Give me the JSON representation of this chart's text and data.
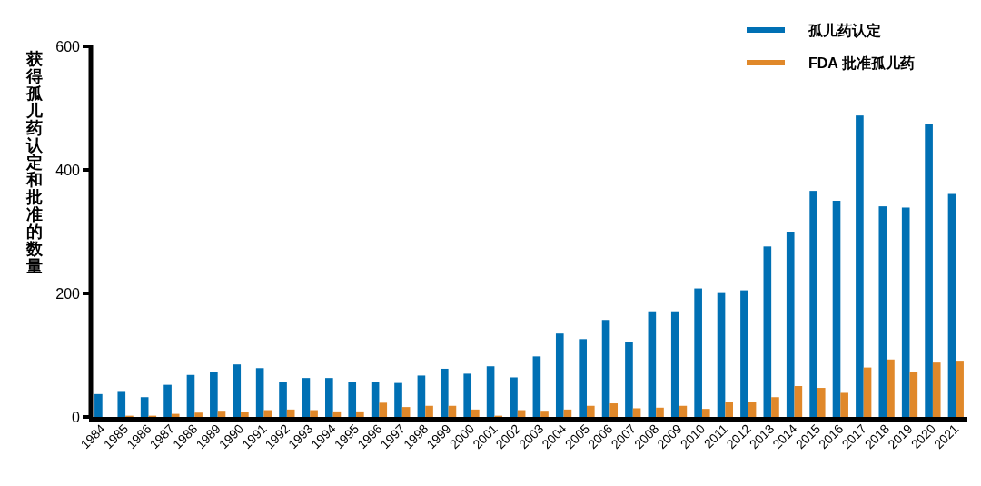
{
  "chart_data": {
    "type": "bar",
    "ylabel": "获得孤儿药认定和批准的数量",
    "categories": [
      "1984",
      "1985",
      "1986",
      "1987",
      "1988",
      "1989",
      "1990",
      "1991",
      "1992",
      "1993",
      "1994",
      "1995",
      "1996",
      "1997",
      "1998",
      "1999",
      "2000",
      "2001",
      "2002",
      "2003",
      "2004",
      "2005",
      "2006",
      "2007",
      "2008",
      "2009",
      "2010",
      "2011",
      "2012",
      "2013",
      "2014",
      "2015",
      "2016",
      "2017",
      "2018",
      "2019",
      "2020",
      "2021"
    ],
    "series": [
      {
        "name": "孤儿药认定",
        "color": "#0070b4",
        "values": [
          37,
          42,
          32,
          52,
          68,
          73,
          85,
          79,
          56,
          63,
          63,
          56,
          56,
          55,
          67,
          78,
          70,
          82,
          64,
          98,
          135,
          126,
          157,
          121,
          171,
          171,
          208,
          202,
          205,
          276,
          300,
          366,
          350,
          488,
          341,
          339,
          475,
          361
        ]
      },
      {
        "name": "FDA 批准孤儿药",
        "color": "#e0882a",
        "values": [
          0,
          2,
          2,
          5,
          7,
          10,
          8,
          11,
          12,
          11,
          9,
          9,
          23,
          16,
          18,
          18,
          12,
          2,
          11,
          10,
          12,
          18,
          22,
          14,
          15,
          18,
          13,
          24,
          24,
          32,
          50,
          47,
          39,
          80,
          93,
          73,
          88,
          91
        ]
      }
    ],
    "ylim": [
      0,
      600
    ],
    "yticks": [
      0,
      200,
      400,
      600
    ],
    "grid": false,
    "legend": "top right"
  }
}
